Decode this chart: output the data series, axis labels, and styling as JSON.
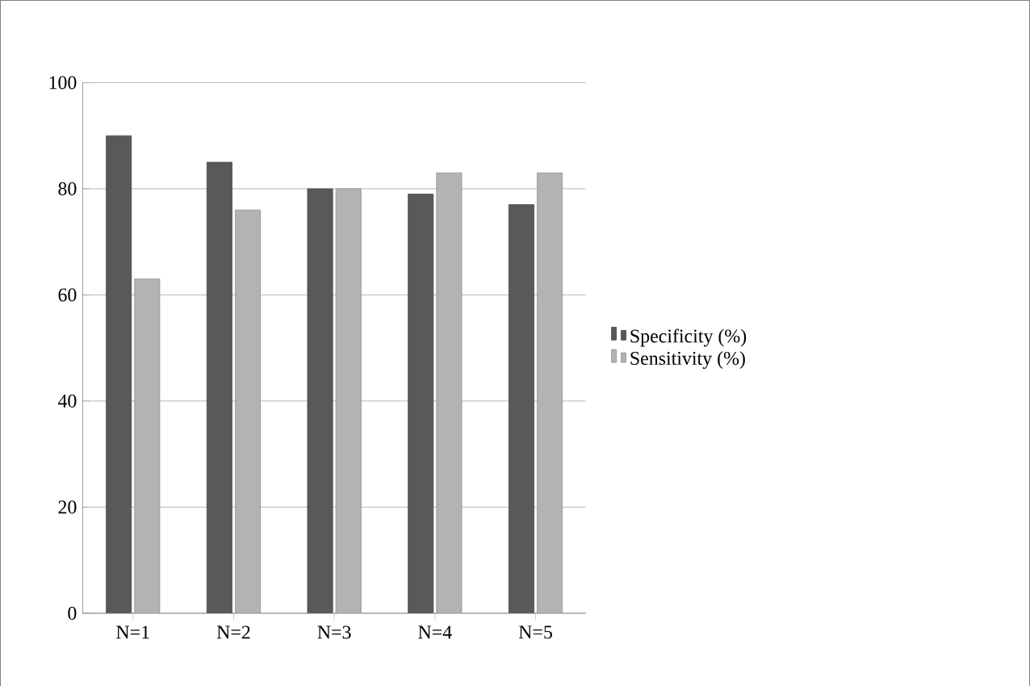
{
  "chart_data": {
    "type": "bar",
    "categories": [
      "N=1",
      "N=2",
      "N=3",
      "N=4",
      "N=5"
    ],
    "series": [
      {
        "name": "Specificity (%)",
        "color": "#595959",
        "values": [
          90,
          85,
          80,
          79,
          77
        ]
      },
      {
        "name": "Sensitivity (%)",
        "color": "#b3b3b3",
        "values": [
          63,
          76,
          80,
          83,
          83
        ]
      }
    ],
    "ylim": [
      0,
      100
    ],
    "yticks": [
      0,
      20,
      40,
      60,
      80,
      100
    ],
    "grid": "y",
    "legend": "right"
  }
}
